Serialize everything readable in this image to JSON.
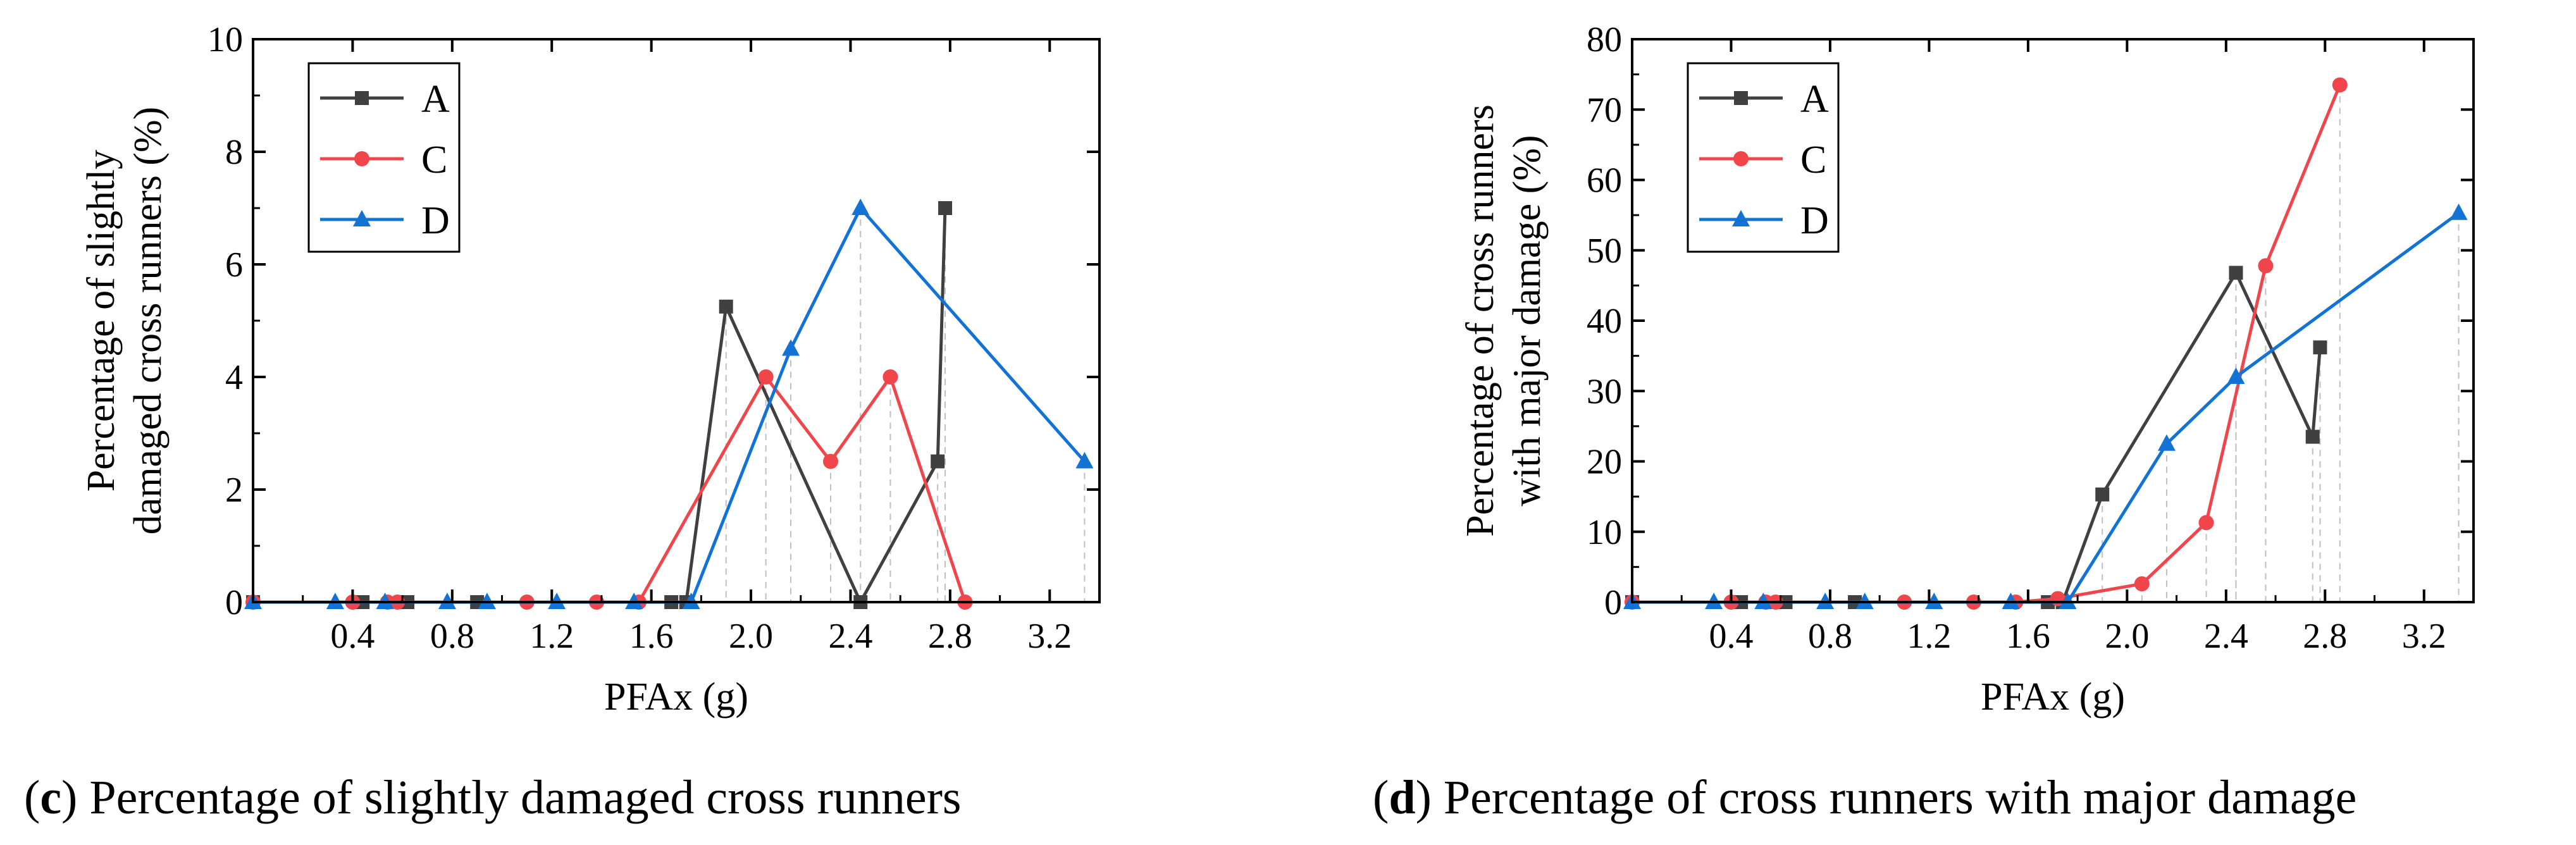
{
  "chart_data": [
    {
      "type": "line",
      "panel": "c",
      "xlabel": "PFAx (g)",
      "ylabel": [
        "Percentage of slightly",
        "damaged cross runners (%)"
      ],
      "xlim": [
        0,
        3.4
      ],
      "ylim": [
        0,
        10
      ],
      "xticks": [
        "0.4",
        "0.8",
        "1.2",
        "1.6",
        "2.0",
        "2.4",
        "2.8",
        "3.2"
      ],
      "yticks": [
        "0",
        "2",
        "4",
        "6",
        "8",
        "10"
      ],
      "legend": "top-left",
      "series": [
        {
          "name": "A",
          "color": "#404040",
          "marker": "square",
          "x": [
            0.0,
            0.44,
            0.62,
            0.9,
            1.68,
            1.74,
            1.9,
            2.44,
            2.75,
            2.78
          ],
          "y": [
            0,
            0,
            0,
            0,
            0,
            0,
            5.25,
            0,
            2.5,
            7.0
          ]
        },
        {
          "name": "C",
          "color": "#f0454a",
          "marker": "circle",
          "x": [
            0.0,
            0.4,
            0.54,
            0.58,
            1.1,
            1.38,
            1.55,
            2.06,
            2.32,
            2.56,
            2.86
          ],
          "y": [
            0,
            0,
            0,
            0,
            0,
            0,
            0,
            4.0,
            2.5,
            4.0,
            0
          ]
        },
        {
          "name": "D",
          "color": "#1273d4",
          "marker": "triangle",
          "x": [
            0.0,
            0.33,
            0.53,
            0.78,
            0.94,
            1.22,
            1.53,
            1.76,
            2.16,
            2.44,
            3.34
          ],
          "y": [
            0,
            0,
            0,
            0,
            0,
            0,
            0,
            0,
            4.5,
            7.0,
            2.5
          ]
        }
      ]
    },
    {
      "type": "line",
      "panel": "d",
      "xlabel": "PFAx (g)",
      "ylabel": [
        "Percentage of cross runners",
        "with major damage (%)"
      ],
      "xlim": [
        0,
        3.4
      ],
      "ylim": [
        0,
        80
      ],
      "xticks": [
        "0.4",
        "0.8",
        "1.2",
        "1.6",
        "2.0",
        "2.4",
        "2.8",
        "3.2"
      ],
      "yticks": [
        "0",
        "10",
        "20",
        "30",
        "40",
        "50",
        "60",
        "70",
        "80"
      ],
      "legend": "top-left",
      "series": [
        {
          "name": "A",
          "color": "#404040",
          "marker": "square",
          "x": [
            0.0,
            0.44,
            0.62,
            0.9,
            1.68,
            1.74,
            1.9,
            2.44,
            2.75,
            2.78
          ],
          "y": [
            0,
            0,
            0,
            0,
            0,
            0,
            15.3,
            46.8,
            23.5,
            36.2
          ]
        },
        {
          "name": "C",
          "color": "#f0454a",
          "marker": "circle",
          "x": [
            0.0,
            0.4,
            0.54,
            0.58,
            1.1,
            1.38,
            1.55,
            1.72,
            2.06,
            2.32,
            2.56,
            2.86
          ],
          "y": [
            0,
            0,
            0,
            0,
            0,
            0,
            0,
            0.5,
            2.6,
            11.3,
            47.8,
            73.5
          ]
        },
        {
          "name": "D",
          "color": "#1273d4",
          "marker": "triangle",
          "x": [
            0.0,
            0.33,
            0.53,
            0.78,
            0.94,
            1.22,
            1.53,
            1.76,
            2.16,
            2.44,
            3.34
          ],
          "y": [
            0,
            0,
            0,
            0,
            0,
            0,
            0,
            0,
            22.5,
            32.0,
            55.3
          ]
        }
      ]
    }
  ],
  "captions": {
    "c": {
      "letter": "c",
      "text": " Percentage of slightly damaged cross runners"
    },
    "d": {
      "letter": "d",
      "text": " Percentage of cross runners with major damage"
    }
  }
}
